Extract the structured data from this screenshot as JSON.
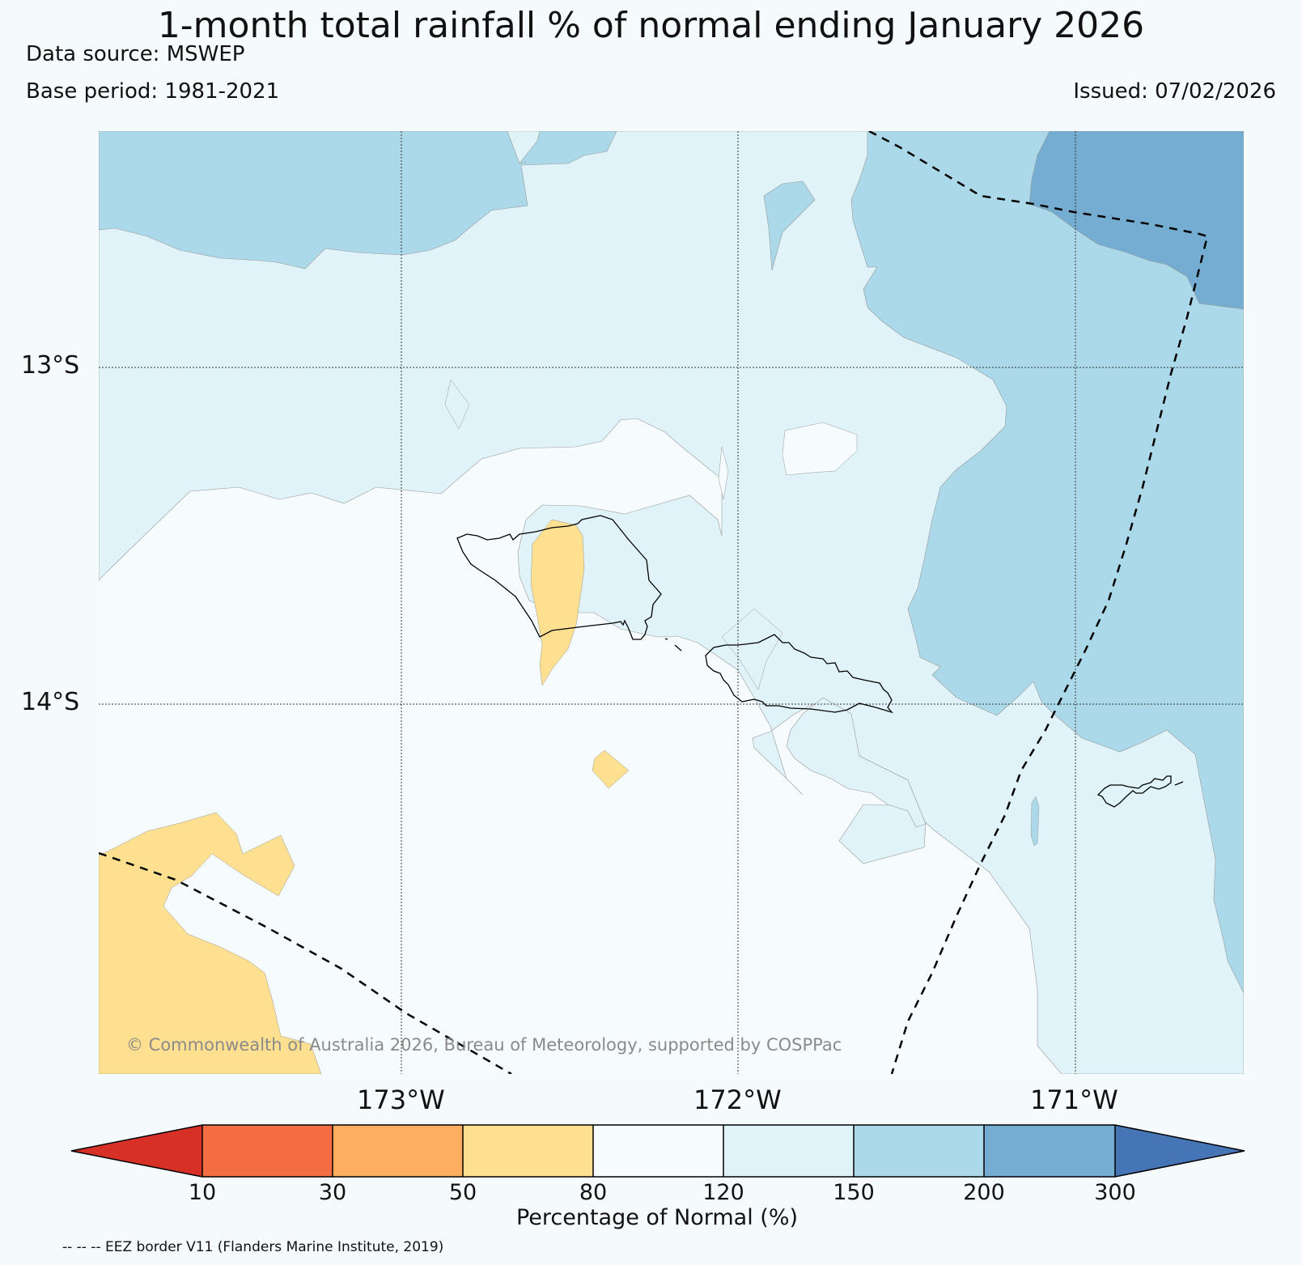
{
  "title": "1-month total rainfall % of normal ending January 2026",
  "data_source": "Data source: MSWEP",
  "base_period": "Base period: 1981-2021",
  "issued": "Issued: 07/02/2026",
  "copyright": "© Commonwealth of Australia 2026, Bureau of Meteorology, supported by COSPPac",
  "lat_labels": [
    "13°S",
    "14°S"
  ],
  "lon_labels": [
    "173°W",
    "172°W",
    "171°W"
  ],
  "colorbar": {
    "title": "Percentage of Normal (%)",
    "ticks": [
      "10",
      "30",
      "50",
      "80",
      "120",
      "150",
      "200",
      "300"
    ],
    "colors": {
      "below_10": "#d73027",
      "10_30": "#f46d43",
      "30_50": "#fdae61",
      "50_80": "#fee090",
      "80_120": "#f6fcfd",
      "120_150": "#e0f3f8",
      "150_200": "#abd9e9",
      "200_300": "#74add1",
      "above_300": "#4575b4"
    }
  },
  "eez_note": "-- -- -- EEZ border V11 (Flanders Marine Institute, 2019)"
}
